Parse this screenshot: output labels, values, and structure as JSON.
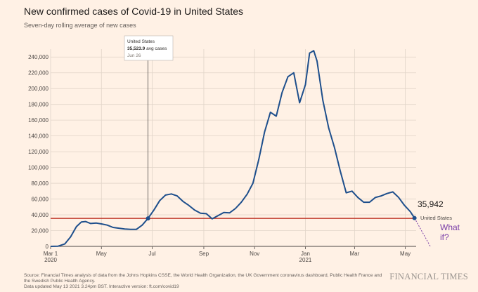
{
  "header": {
    "title": "New confirmed cases of Covid-19 in United States",
    "subtitle": "Seven-day rolling average of new cases"
  },
  "tooltip": {
    "country": "United States",
    "value": "35,523.9",
    "unit": "avg cases",
    "date": "Jun 26"
  },
  "annotation": {
    "end_value": "35,942",
    "end_label": "United States",
    "what_if_line1": "What",
    "what_if_line2": "if?"
  },
  "footer": {
    "source": "Source: Financial Times analysis of data from the Johns Hopkins CSSE, the World Health Organization, the UK Government coronavirus dashboard, Public Health France and the Swedish Public Health Agency.",
    "updated": "Data updated May 13 2021 3.24pm BST. Interactive version: ft.com/covid19"
  },
  "brand": {
    "logo_text": "FINANCIAL TIMES"
  },
  "colors": {
    "background": "#fff1e5",
    "line": "#1e4f8c",
    "reference_line": "#c0392b",
    "annotation": "#7b3fa8"
  },
  "chart_data": {
    "type": "line",
    "title": "New confirmed cases of Covid-19 in United States",
    "subtitle": "Seven-day rolling average of new cases",
    "xlabel": "",
    "ylabel": "",
    "ylim": [
      0,
      250000
    ],
    "grid": true,
    "y_ticks": [
      0,
      20000,
      40000,
      60000,
      80000,
      100000,
      120000,
      140000,
      160000,
      180000,
      200000,
      220000,
      240000
    ],
    "y_tick_labels": [
      "0",
      "20,000",
      "40,000",
      "60,000",
      "80,000",
      "100,000",
      "120,000",
      "140,000",
      "160,000",
      "180,000",
      "200,000",
      "220,000",
      "240,000"
    ],
    "x_ticks": [
      {
        "date": "2020-03-01",
        "label": "Mar 1",
        "sublabel": "2020"
      },
      {
        "date": "2020-05-01",
        "label": "May",
        "sublabel": ""
      },
      {
        "date": "2020-07-01",
        "label": "Jul",
        "sublabel": ""
      },
      {
        "date": "2020-09-01",
        "label": "Sep",
        "sublabel": ""
      },
      {
        "date": "2020-11-01",
        "label": "Nov",
        "sublabel": ""
      },
      {
        "date": "2021-01-01",
        "label": "Jan",
        "sublabel": "2021"
      },
      {
        "date": "2021-03-01",
        "label": "Mar",
        "sublabel": ""
      },
      {
        "date": "2021-05-01",
        "label": "May",
        "sublabel": ""
      }
    ],
    "reference_value": 35524,
    "reference_date": "2020-06-26",
    "projection": [
      {
        "date": "2021-05-12",
        "y": 35942
      },
      {
        "date": "2021-05-31",
        "y": 0
      }
    ],
    "series": [
      {
        "name": "United States",
        "points": [
          {
            "date": "2020-03-01",
            "y": 0
          },
          {
            "date": "2020-03-10",
            "y": 300
          },
          {
            "date": "2020-03-18",
            "y": 3000
          },
          {
            "date": "2020-03-25",
            "y": 12000
          },
          {
            "date": "2020-04-01",
            "y": 25000
          },
          {
            "date": "2020-04-07",
            "y": 31000
          },
          {
            "date": "2020-04-12",
            "y": 31500
          },
          {
            "date": "2020-04-18",
            "y": 29000
          },
          {
            "date": "2020-04-25",
            "y": 29500
          },
          {
            "date": "2020-05-01",
            "y": 28500
          },
          {
            "date": "2020-05-08",
            "y": 27000
          },
          {
            "date": "2020-05-15",
            "y": 24000
          },
          {
            "date": "2020-05-22",
            "y": 23000
          },
          {
            "date": "2020-05-29",
            "y": 22000
          },
          {
            "date": "2020-06-05",
            "y": 21500
          },
          {
            "date": "2020-06-12",
            "y": 21500
          },
          {
            "date": "2020-06-19",
            "y": 27000
          },
          {
            "date": "2020-06-26",
            "y": 35524
          },
          {
            "date": "2020-07-03",
            "y": 46000
          },
          {
            "date": "2020-07-10",
            "y": 58000
          },
          {
            "date": "2020-07-17",
            "y": 65000
          },
          {
            "date": "2020-07-24",
            "y": 66500
          },
          {
            "date": "2020-07-31",
            "y": 64000
          },
          {
            "date": "2020-08-07",
            "y": 57000
          },
          {
            "date": "2020-08-14",
            "y": 52000
          },
          {
            "date": "2020-08-21",
            "y": 46000
          },
          {
            "date": "2020-08-28",
            "y": 42000
          },
          {
            "date": "2020-09-04",
            "y": 41500
          },
          {
            "date": "2020-09-11",
            "y": 35000
          },
          {
            "date": "2020-09-18",
            "y": 39000
          },
          {
            "date": "2020-09-25",
            "y": 43000
          },
          {
            "date": "2020-10-02",
            "y": 42500
          },
          {
            "date": "2020-10-09",
            "y": 48000
          },
          {
            "date": "2020-10-16",
            "y": 56000
          },
          {
            "date": "2020-10-23",
            "y": 66000
          },
          {
            "date": "2020-10-30",
            "y": 80000
          },
          {
            "date": "2020-11-06",
            "y": 110000
          },
          {
            "date": "2020-11-13",
            "y": 145000
          },
          {
            "date": "2020-11-20",
            "y": 170000
          },
          {
            "date": "2020-11-27",
            "y": 165000
          },
          {
            "date": "2020-12-04",
            "y": 195000
          },
          {
            "date": "2020-12-11",
            "y": 215000
          },
          {
            "date": "2020-12-18",
            "y": 220000
          },
          {
            "date": "2020-12-25",
            "y": 182000
          },
          {
            "date": "2021-01-01",
            "y": 205000
          },
          {
            "date": "2021-01-06",
            "y": 245000
          },
          {
            "date": "2021-01-11",
            "y": 248000
          },
          {
            "date": "2021-01-15",
            "y": 235000
          },
          {
            "date": "2021-01-22",
            "y": 185000
          },
          {
            "date": "2021-01-29",
            "y": 150000
          },
          {
            "date": "2021-02-05",
            "y": 125000
          },
          {
            "date": "2021-02-12",
            "y": 95000
          },
          {
            "date": "2021-02-19",
            "y": 68000
          },
          {
            "date": "2021-02-26",
            "y": 70000
          },
          {
            "date": "2021-03-05",
            "y": 62000
          },
          {
            "date": "2021-03-12",
            "y": 56000
          },
          {
            "date": "2021-03-19",
            "y": 56000
          },
          {
            "date": "2021-03-26",
            "y": 62000
          },
          {
            "date": "2021-04-02",
            "y": 64000
          },
          {
            "date": "2021-04-09",
            "y": 67000
          },
          {
            "date": "2021-04-16",
            "y": 69000
          },
          {
            "date": "2021-04-23",
            "y": 62000
          },
          {
            "date": "2021-04-30",
            "y": 52000
          },
          {
            "date": "2021-05-07",
            "y": 44000
          },
          {
            "date": "2021-05-12",
            "y": 35942
          }
        ]
      }
    ]
  }
}
